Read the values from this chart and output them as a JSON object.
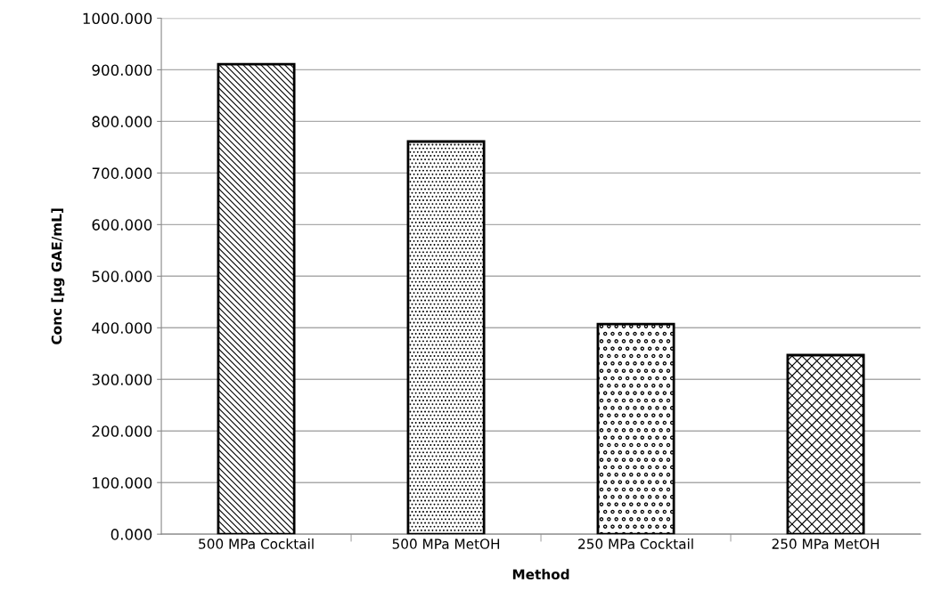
{
  "chart_data": {
    "type": "bar",
    "xlabel": "Method",
    "ylabel": "Conc [µg GAE/mL]",
    "categories": [
      "500 MPa Cocktail",
      "500 MPa MetOH",
      "250 MPa Cocktail",
      "250 MPa MetOH"
    ],
    "values": [
      911,
      761,
      407,
      347
    ],
    "colors": [
      "#000000",
      "#000000",
      "#000000",
      "#000000"
    ],
    "ylim": [
      0,
      1000
    ],
    "yticks": [
      {
        "value": 0,
        "label": "0.000"
      },
      {
        "value": 100,
        "label": "100.000"
      },
      {
        "value": 200,
        "label": "200.000"
      },
      {
        "value": 300,
        "label": "300.000"
      },
      {
        "value": 400,
        "label": "400.000"
      },
      {
        "value": 500,
        "label": "500.000"
      },
      {
        "value": 600,
        "label": "600.000"
      },
      {
        "value": 700,
        "label": "700.000"
      },
      {
        "value": 800,
        "label": "800.000"
      },
      {
        "value": 900,
        "label": "900.000"
      },
      {
        "value": 1000,
        "label": "1000.000"
      }
    ],
    "grid": "y",
    "legend": false
  }
}
